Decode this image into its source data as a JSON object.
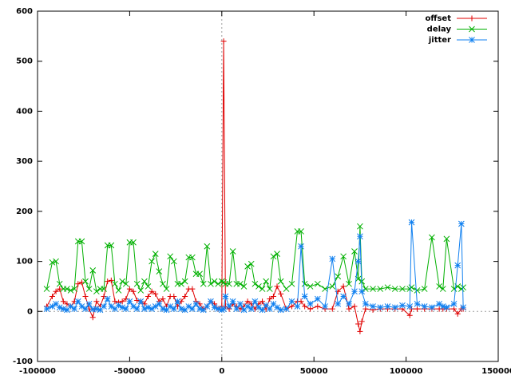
{
  "chart_data": {
    "type": "line",
    "x": [
      -95000,
      -92000,
      -90000,
      -88000,
      -86000,
      -84000,
      -82000,
      -80000,
      -78000,
      -76000,
      -74000,
      -72000,
      -70000,
      -68000,
      -66000,
      -64000,
      -62000,
      -60000,
      -58000,
      -56000,
      -54000,
      -52000,
      -50000,
      -48000,
      -46000,
      -44000,
      -42000,
      -40000,
      -38000,
      -36000,
      -34000,
      -32000,
      -30000,
      -28000,
      -26000,
      -24000,
      -22000,
      -20000,
      -18000,
      -16000,
      -14000,
      -12000,
      -10000,
      -8000,
      -6000,
      -4000,
      -2000,
      0,
      1000,
      2000,
      4000,
      6000,
      8000,
      10000,
      12000,
      14000,
      16000,
      18000,
      20000,
      22000,
      24000,
      26000,
      28000,
      30000,
      32000,
      35000,
      38000,
      41000,
      43000,
      45000,
      48000,
      52000,
      56000,
      60000,
      63000,
      66000,
      69000,
      72000,
      74000,
      75000,
      76000,
      78000,
      82000,
      86000,
      90000,
      94000,
      98000,
      102000,
      103000,
      106000,
      110000,
      114000,
      118000,
      120000,
      122000,
      126000,
      128000,
      130000,
      131000
    ],
    "series": [
      {
        "name": "offset",
        "color": "#e00000",
        "marker": "plus",
        "values": [
          10,
          30,
          40,
          45,
          20,
          15,
          10,
          20,
          55,
          58,
          30,
          5,
          -12,
          20,
          10,
          30,
          60,
          62,
          20,
          18,
          20,
          25,
          45,
          40,
          22,
          20,
          15,
          30,
          40,
          35,
          20,
          25,
          10,
          30,
          30,
          10,
          20,
          30,
          45,
          45,
          20,
          15,
          5,
          10,
          20,
          15,
          5,
          10,
          540,
          10,
          5,
          15,
          10,
          5,
          10,
          20,
          15,
          5,
          15,
          20,
          5,
          25,
          30,
          50,
          35,
          5,
          10,
          20,
          20,
          10,
          5,
          10,
          5,
          5,
          40,
          50,
          5,
          10,
          -25,
          -40,
          -20,
          5,
          3,
          5,
          5,
          5,
          5,
          -8,
          5,
          5,
          5,
          5,
          5,
          5,
          5,
          5,
          -5,
          5,
          5
        ]
      },
      {
        "name": "delay",
        "color": "#00b000",
        "marker": "cross",
        "values": [
          45,
          98,
          100,
          55,
          45,
          45,
          42,
          45,
          140,
          140,
          60,
          45,
          82,
          40,
          45,
          45,
          132,
          132,
          55,
          42,
          60,
          55,
          138,
          138,
          55,
          42,
          60,
          50,
          100,
          115,
          80,
          55,
          45,
          110,
          100,
          55,
          55,
          60,
          108,
          108,
          75,
          75,
          55,
          130,
          55,
          60,
          55,
          60,
          58,
          55,
          55,
          120,
          55,
          55,
          50,
          90,
          95,
          55,
          50,
          45,
          60,
          45,
          110,
          115,
          60,
          45,
          55,
          160,
          160,
          55,
          50,
          55,
          45,
          50,
          70,
          110,
          55,
          120,
          65,
          170,
          60,
          45,
          45,
          45,
          48,
          45,
          45,
          45,
          48,
          42,
          45,
          148,
          50,
          45,
          145,
          45,
          50,
          45,
          48
        ]
      },
      {
        "name": "jitter",
        "color": "#1080f0",
        "marker": "star",
        "values": [
          5,
          10,
          15,
          8,
          5,
          3,
          10,
          5,
          20,
          10,
          5,
          15,
          4,
          5,
          3,
          10,
          25,
          10,
          5,
          12,
          8,
          5,
          20,
          10,
          5,
          20,
          5,
          8,
          5,
          10,
          15,
          5,
          3,
          10,
          5,
          20,
          5,
          3,
          10,
          5,
          15,
          5,
          3,
          10,
          20,
          8,
          5,
          3,
          5,
          30,
          10,
          20,
          5,
          15,
          3,
          10,
          5,
          20,
          8,
          3,
          12,
          5,
          15,
          8,
          3,
          5,
          20,
          10,
          130,
          30,
          15,
          25,
          10,
          105,
          15,
          30,
          15,
          40,
          100,
          150,
          40,
          15,
          10,
          8,
          10,
          8,
          12,
          10,
          178,
          15,
          10,
          8,
          15,
          10,
          8,
          15,
          92,
          175,
          8
        ]
      }
    ],
    "xlim": [
      -100000,
      150000
    ],
    "xticks": [
      -100000,
      -50000,
      0,
      50000,
      100000,
      150000
    ],
    "ylim": [
      -100,
      600
    ],
    "yticks": [
      -100,
      0,
      100,
      200,
      300,
      400,
      500,
      600
    ],
    "zeroaxis": true,
    "legend": "top-right"
  }
}
